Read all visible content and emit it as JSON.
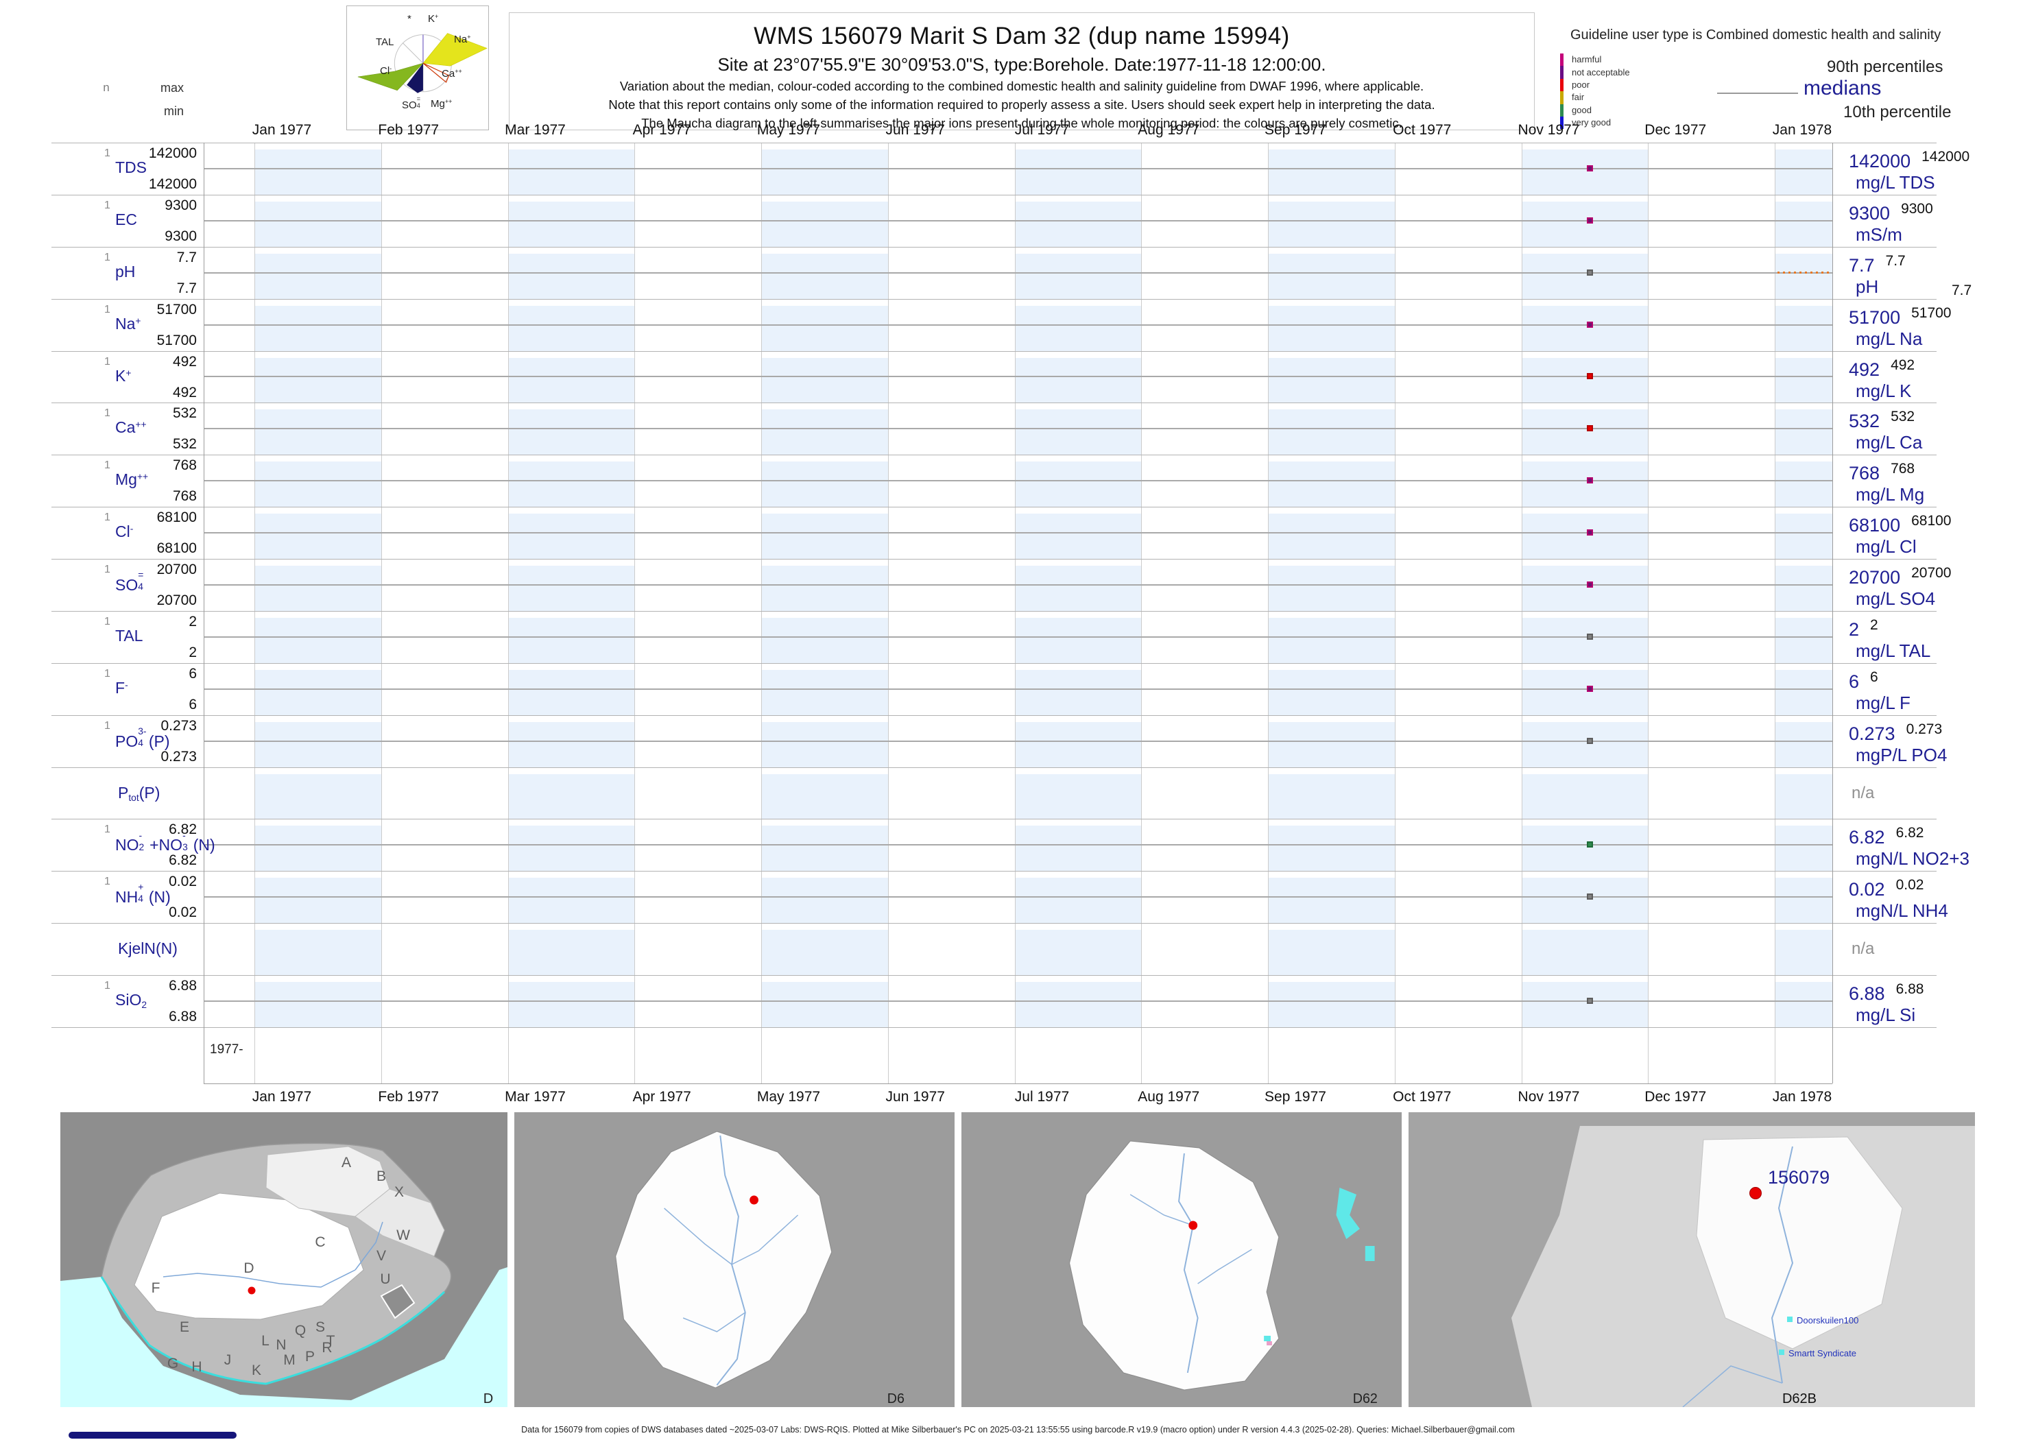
{
  "header": {
    "title": "WMS 156079  Marit S Dam 32 (dup name 15994)",
    "subtitle": "Site at 23°07'55.9\"E 30°09'53.0\"S, type:Borehole. Date:1977-11-18 12:00:00.",
    "note1": "Variation about the median,  colour-coded according to the combined domestic health and salinity guideline from DWAF 1996, where applicable.",
    "note2": "Note that this report contains only some of the information required to properly assess a site. Users should seek expert help in interpreting the data.",
    "note3": "The Maucha diagram to the left summarises the major ions present during the whole monitoring period: the colours are purely cosmetic."
  },
  "stats_header": {
    "n": "n",
    "max": "max",
    "min": "min"
  },
  "maucha": {
    "ion_labels": [
      [
        {
          "t": "*"
        }
      ],
      [
        {
          "t": "K"
        },
        {
          "sup": "+"
        }
      ],
      [
        {
          "t": "TAL"
        }
      ],
      [
        {
          "t": "Na"
        },
        {
          "sup": "+"
        }
      ],
      [
        {
          "t": "Cl"
        },
        {
          "sup": "-"
        }
      ],
      [
        {
          "t": "Ca"
        },
        {
          "sup": "++"
        }
      ],
      [
        {
          "t": "SO"
        },
        {
          "stk": [
            "=",
            "4"
          ]
        }
      ],
      [
        {
          "t": "Mg"
        },
        {
          "sup": "++"
        }
      ]
    ]
  },
  "guideline_legend": {
    "title": "Guideline user type is Combined domestic health and salinity",
    "classes": [
      {
        "label": "harmful",
        "color": "#C4007A"
      },
      {
        "label": "not acceptable",
        "color": "#6A0D84"
      },
      {
        "label": "poor",
        "color": "#E8000B"
      },
      {
        "label": "fair",
        "color": "#C8A800"
      },
      {
        "label": "good",
        "color": "#2E8B50"
      },
      {
        "label": "very good",
        "color": "#1414D2"
      }
    ],
    "p90": "90th percentiles",
    "median": "medians",
    "p10": "10th percentile"
  },
  "status_colors": {
    "not_acceptable": {
      "fill": "#70116F",
      "edge": "#B4006E"
    },
    "poor": {
      "fill": "#E80000",
      "edge": "#B40000"
    },
    "good": {
      "fill": "#2F8B4D",
      "edge": "#1F6B38"
    },
    "none": {
      "fill": "#808080",
      "edge": "#5E5E5E"
    }
  },
  "chart_data": {
    "type": "scatter",
    "title": "WMS 156079  Marit S Dam 32 (dup name 15994)",
    "x_ticks": [
      "Jan 1977",
      "Feb 1977",
      "Mar 1977",
      "Apr 1977",
      "May 1977",
      "Jun 1977",
      "Jul 1977",
      "Aug 1977",
      "Sep 1977",
      "Oct 1977",
      "Nov 1977",
      "Dec 1977",
      "Jan 1978"
    ],
    "year_label": "1977-",
    "sample_datetime": "1977-11-18 12:00:00",
    "n_samples": 1,
    "legend_position": "top-right",
    "grid": "month columns shaded alternately",
    "parameters": [
      {
        "id": "tds",
        "label": [
          {
            "t": "TDS"
          }
        ],
        "n": "1",
        "max": "142000",
        "min": "142000",
        "p90": "142000",
        "median": "142000",
        "value": 142000,
        "unit": "mg/L TDS",
        "status": "not_acceptable"
      },
      {
        "id": "ec",
        "label": [
          {
            "t": "EC"
          }
        ],
        "n": "1",
        "max": "9300",
        "min": "9300",
        "p90": "9300",
        "median": "9300",
        "value": 9300,
        "unit": "mS/m",
        "status": "not_acceptable"
      },
      {
        "id": "ph",
        "label": [
          {
            "t": "pH"
          }
        ],
        "n": "1",
        "max": "7.7",
        "min": "7.7",
        "p90": "7.7",
        "p10": "7.7",
        "median": "7.7",
        "value": 7.7,
        "unit": "pH",
        "status": "none",
        "guideline_marker": "orange-dotted"
      },
      {
        "id": "na",
        "label": [
          {
            "t": "Na"
          },
          {
            "sup": "+"
          }
        ],
        "n": "1",
        "max": "51700",
        "min": "51700",
        "p90": "51700",
        "median": "51700",
        "value": 51700,
        "unit": "mg/L Na",
        "status": "not_acceptable"
      },
      {
        "id": "k",
        "label": [
          {
            "t": "K"
          },
          {
            "sup": "+"
          }
        ],
        "n": "1",
        "max": "492",
        "min": "492",
        "p90": "492",
        "median": "492",
        "value": 492,
        "unit": "mg/L K",
        "status": "poor"
      },
      {
        "id": "ca",
        "label": [
          {
            "t": "Ca"
          },
          {
            "sup": "++"
          }
        ],
        "n": "1",
        "max": "532",
        "min": "532",
        "p90": "532",
        "median": "532",
        "value": 532,
        "unit": "mg/L Ca",
        "status": "poor"
      },
      {
        "id": "mg",
        "label": [
          {
            "t": "Mg"
          },
          {
            "sup": "++"
          }
        ],
        "n": "1",
        "max": "768",
        "min": "768",
        "p90": "768",
        "median": "768",
        "value": 768,
        "unit": "mg/L Mg",
        "status": "not_acceptable"
      },
      {
        "id": "cl",
        "label": [
          {
            "t": "Cl"
          },
          {
            "sup": "-"
          }
        ],
        "n": "1",
        "max": "68100",
        "min": "68100",
        "p90": "68100",
        "median": "68100",
        "value": 68100,
        "unit": "mg/L Cl",
        "status": "not_acceptable"
      },
      {
        "id": "so4",
        "label": [
          {
            "t": "SO"
          },
          {
            "stk": [
              "=",
              "4"
            ]
          }
        ],
        "n": "1",
        "max": "20700",
        "min": "20700",
        "p90": "20700",
        "median": "20700",
        "value": 20700,
        "unit": "mg/L SO4",
        "status": "not_acceptable"
      },
      {
        "id": "tal",
        "label": [
          {
            "t": "TAL"
          }
        ],
        "n": "1",
        "max": "2",
        "min": "2",
        "p90": "2",
        "median": "2",
        "value": 2,
        "unit": "mg/L TAL",
        "status": "none"
      },
      {
        "id": "f",
        "label": [
          {
            "t": "F"
          },
          {
            "sup": "-"
          }
        ],
        "n": "1",
        "max": "6",
        "min": "6",
        "p90": "6",
        "median": "6",
        "value": 6,
        "unit": "mg/L F",
        "status": "not_acceptable"
      },
      {
        "id": "po4",
        "label": [
          {
            "t": "PO"
          },
          {
            "stk": [
              "3-",
              "4"
            ]
          },
          {
            "t": "(P)"
          }
        ],
        "n": "1",
        "max": "0.273",
        "min": "0.273",
        "p90": "0.273",
        "median": "0.273",
        "value": 0.273,
        "unit": "mgP/L PO4",
        "status": "none"
      },
      {
        "id": "ptot",
        "label": [
          {
            "t": "P"
          },
          {
            "sub": "tot"
          },
          {
            "t": "(P)"
          }
        ],
        "na": "n/a"
      },
      {
        "id": "no23",
        "label": [
          {
            "t": "NO"
          },
          {
            "stk": [
              "-",
              "2"
            ]
          },
          {
            "t": "+NO"
          },
          {
            "stk": [
              "-",
              "3"
            ]
          },
          {
            "t": "(N)"
          }
        ],
        "n": "1",
        "max": "6.82",
        "min": "6.82",
        "p90": "6.82",
        "median": "6.82",
        "value": 6.82,
        "unit": "mgN/L NO2+3",
        "status": "good"
      },
      {
        "id": "nh4",
        "label": [
          {
            "t": "NH"
          },
          {
            "stk": [
              "+",
              "4"
            ]
          },
          {
            "t": "(N)"
          }
        ],
        "n": "1",
        "max": "0.02",
        "min": "0.02",
        "p90": "0.02",
        "median": "0.02",
        "value": 0.02,
        "unit": "mgN/L NH4",
        "status": "none"
      },
      {
        "id": "kjeln",
        "label": [
          {
            "t": "KjelN(N)"
          }
        ],
        "na": "n/a"
      },
      {
        "id": "sio2",
        "label": [
          {
            "t": "SiO"
          },
          {
            "sub": "2"
          }
        ],
        "n": "1",
        "max": "6.88",
        "min": "6.88",
        "p90": "6.88",
        "median": "6.88",
        "value": 6.88,
        "unit": "mg/L Si",
        "status": "none"
      }
    ]
  },
  "maps": {
    "panels": [
      {
        "code": "D",
        "letters": [
          "A",
          "B",
          "X",
          "W",
          "C",
          "V",
          "U",
          "D",
          "F",
          "E",
          "G",
          "H",
          "J",
          "K",
          "L",
          "N",
          "M",
          "P",
          "Q",
          "S",
          "R",
          "T"
        ]
      },
      {
        "code": "D6"
      },
      {
        "code": "D62"
      },
      {
        "code": "D62B",
        "station": "156079",
        "places": [
          "Doorskuilen100",
          "Smartt Syndicate"
        ]
      }
    ]
  },
  "footer": "Data for 156079 from copies of DWS databases dated ~2025-03-07 Labs: DWS-RQIS. Plotted at Mike Silberbauer's PC on 2025-03-21 13:55:55 using barcode.R v19.9 (macro option) under R version 4.4.3 (2025-02-28). Queries: Michael.Silberbauer@gmail.com",
  "colors": {
    "navy": "#1F1F93",
    "pale_blue_band": "#E9F2FC",
    "marker_red": "#E80000",
    "orange_guideline": "#E87722"
  }
}
